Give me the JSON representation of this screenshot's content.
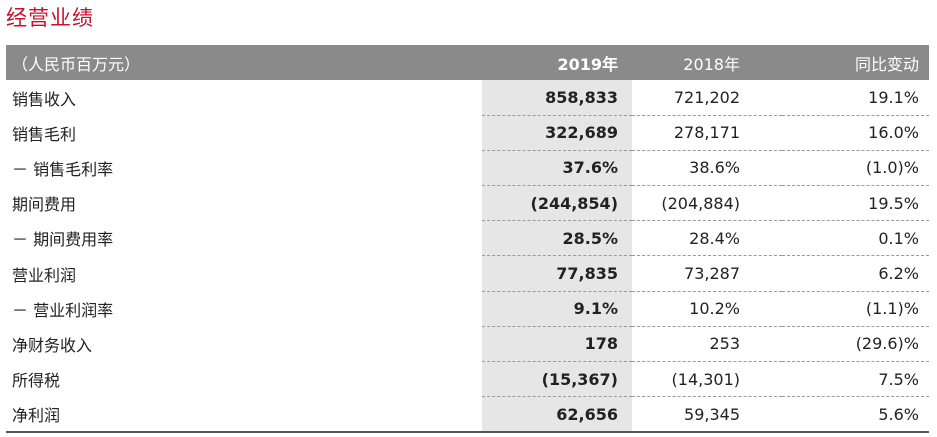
{
  "title": "经营业绩",
  "table": {
    "headers": {
      "label": "（人民币百万元）",
      "y2019": "2019年",
      "y2018": "2018年",
      "yoy": "同比变动"
    },
    "rows": [
      {
        "label": "销售收入",
        "y2019": "858,833",
        "y2018": "721,202",
        "yoy": "19.1%"
      },
      {
        "label": "销售毛利",
        "y2019": "322,689",
        "y2018": "278,171",
        "yoy": "16.0%"
      },
      {
        "label": "－ 销售毛利率",
        "y2019": "37.6%",
        "y2018": "38.6%",
        "yoy": "(1.0)%"
      },
      {
        "label": "期间费用",
        "y2019": "(244,854)",
        "y2018": "(204,884)",
        "yoy": "19.5%"
      },
      {
        "label": "－ 期间费用率",
        "y2019": "28.5%",
        "y2018": "28.4%",
        "yoy": "0.1%"
      },
      {
        "label": "营业利润",
        "y2019": "77,835",
        "y2018": "73,287",
        "yoy": "6.2%"
      },
      {
        "label": "－ 营业利润率",
        "y2019": "9.1%",
        "y2018": "10.2%",
        "yoy": "(1.1)%"
      },
      {
        "label": "净财务收入",
        "y2019": "178",
        "y2018": "253",
        "yoy": "(29.6)%"
      },
      {
        "label": "所得税",
        "y2019": "(15,367)",
        "y2018": "(14,301)",
        "yoy": "7.5%"
      },
      {
        "label": "净利润",
        "y2019": "62,656",
        "y2018": "59,345",
        "yoy": "5.6%"
      }
    ]
  },
  "colors": {
    "title": "#c8102e",
    "header_bg": "#8a8a8a",
    "highlight_col": "#e6e6e6"
  }
}
